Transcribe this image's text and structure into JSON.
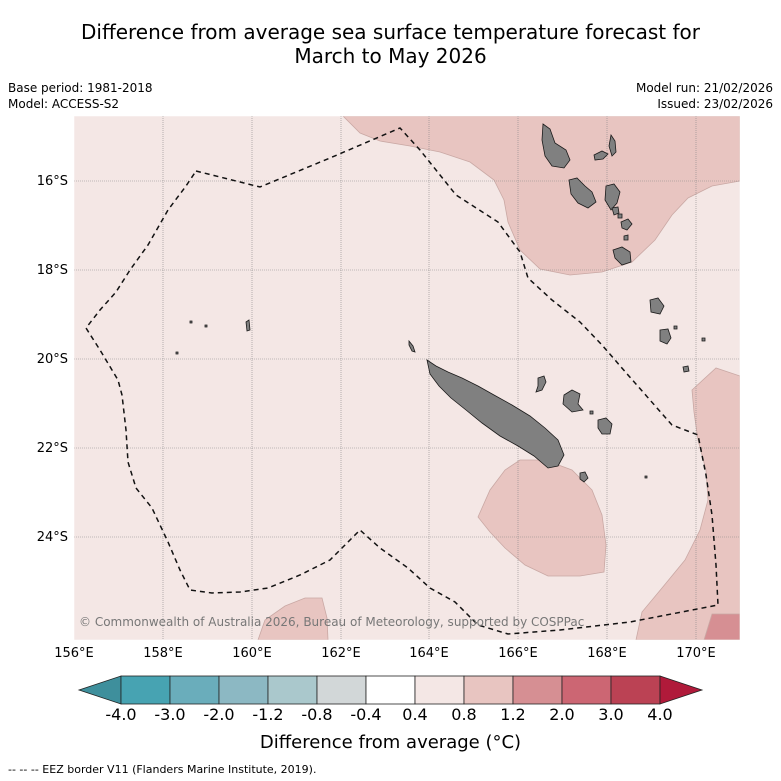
{
  "title": {
    "line1": "Difference from average sea surface temperature forecast for",
    "line2": "March to May 2026"
  },
  "meta": {
    "base_period": "Base period: 1981-2018",
    "model": "Model: ACCESS-S2",
    "model_run": "Model run: 21/02/2026",
    "issued": "Issued: 23/02/2026"
  },
  "map": {
    "lat_labels": [
      "16°S",
      "18°S",
      "20°S",
      "22°S",
      "24°S"
    ],
    "lon_labels": [
      "156°E",
      "158°E",
      "160°E",
      "162°E",
      "164°E",
      "166°E",
      "168°E",
      "170°E"
    ],
    "copyright": "© Commonwealth of Australia 2026, Bureau of Meteorology, supported by COSPPac",
    "colors": {
      "band_0_4_0_8": "#f4e7e5",
      "band_0_8_1_2": "#e8c5c1",
      "band_1_2_2_0": "#d68f93",
      "land": "#808080",
      "grid": "#888888"
    }
  },
  "colorbar": {
    "labels": [
      "-4.0",
      "-3.0",
      "-2.0",
      "-1.2",
      "-0.8",
      "-0.4",
      "0.4",
      "0.8",
      "1.2",
      "2.0",
      "3.0",
      "4.0"
    ],
    "colors": [
      "#3e8f9c",
      "#47a3b2",
      "#6aadbb",
      "#8cb8c3",
      "#aac8cc",
      "#d2d7d8",
      "#ffffff",
      "#f4e7e5",
      "#e8c5c1",
      "#d68f93",
      "#cc6673",
      "#bb4254",
      "#b01a3a"
    ],
    "title": "Difference from average (°C)"
  },
  "footer": "--  --  -- EEZ border V11 (Flanders Marine Institute, 2019)."
}
